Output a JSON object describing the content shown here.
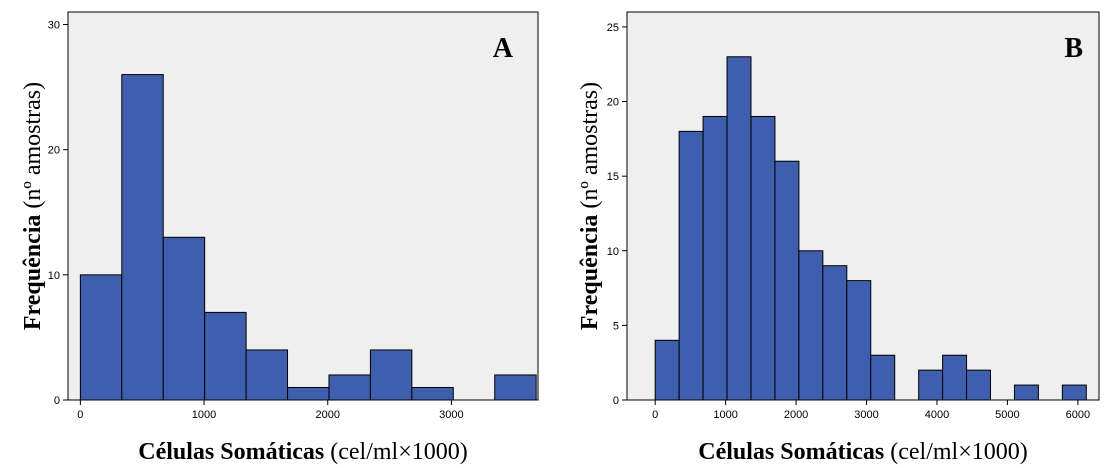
{
  "chart_data": [
    {
      "type": "bar",
      "panel_label": "A",
      "xlabel_bold": "Células Somáticas",
      "xlabel_rest": " (cel/ml×1000)",
      "ylabel_bold": "Frequência",
      "ylabel_rest": " (nº amostras)",
      "xlim": [
        -100,
        3700
      ],
      "ylim": [
        0,
        31
      ],
      "xticks": [
        0,
        1000,
        2000,
        3000
      ],
      "yticks": [
        0,
        10,
        20,
        30
      ],
      "bins": [
        {
          "x0": 0,
          "x1": 335,
          "count": 10
        },
        {
          "x0": 335,
          "x1": 670,
          "count": 26
        },
        {
          "x0": 670,
          "x1": 1005,
          "count": 13
        },
        {
          "x0": 1005,
          "x1": 1340,
          "count": 7
        },
        {
          "x0": 1340,
          "x1": 1675,
          "count": 4
        },
        {
          "x0": 1675,
          "x1": 2010,
          "count": 1
        },
        {
          "x0": 2010,
          "x1": 2345,
          "count": 2
        },
        {
          "x0": 2345,
          "x1": 2680,
          "count": 4
        },
        {
          "x0": 2680,
          "x1": 3015,
          "count": 1
        },
        {
          "x0": 3350,
          "x1": 3685,
          "count": 2
        }
      ],
      "bar_color": "#3f5fae",
      "background": "#efefef"
    },
    {
      "type": "bar",
      "panel_label": "B",
      "xlabel_bold": "Células Somáticas",
      "xlabel_rest": " (cel/ml×1000)",
      "ylabel_bold": "Frequência",
      "ylabel_rest": " (nº amostras)",
      "xlim": [
        -400,
        6300
      ],
      "ylim": [
        0,
        26
      ],
      "xticks": [
        0,
        1000,
        2000,
        3000,
        4000,
        5000,
        6000
      ],
      "yticks": [
        0,
        5,
        10,
        15,
        20,
        25
      ],
      "bins": [
        {
          "x0": 0,
          "x1": 340,
          "count": 4
        },
        {
          "x0": 340,
          "x1": 680,
          "count": 18
        },
        {
          "x0": 680,
          "x1": 1020,
          "count": 19
        },
        {
          "x0": 1020,
          "x1": 1360,
          "count": 23
        },
        {
          "x0": 1360,
          "x1": 1700,
          "count": 19
        },
        {
          "x0": 1700,
          "x1": 2040,
          "count": 16
        },
        {
          "x0": 2040,
          "x1": 2380,
          "count": 10
        },
        {
          "x0": 2380,
          "x1": 2720,
          "count": 9
        },
        {
          "x0": 2720,
          "x1": 3060,
          "count": 8
        },
        {
          "x0": 3060,
          "x1": 3400,
          "count": 3
        },
        {
          "x0": 3740,
          "x1": 4080,
          "count": 2
        },
        {
          "x0": 4080,
          "x1": 4420,
          "count": 3
        },
        {
          "x0": 4420,
          "x1": 4760,
          "count": 2
        },
        {
          "x0": 5100,
          "x1": 5440,
          "count": 1
        },
        {
          "x0": 5780,
          "x1": 6120,
          "count": 1
        }
      ],
      "bar_color": "#3f5fae",
      "background": "#efefef"
    }
  ]
}
